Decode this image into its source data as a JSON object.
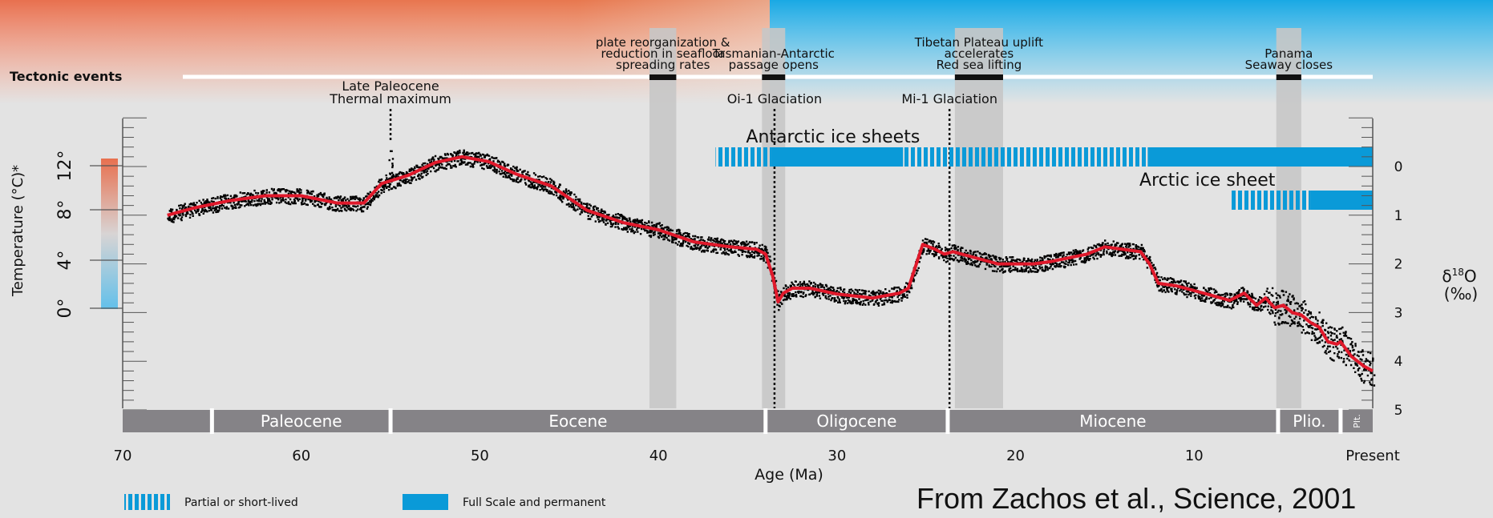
{
  "caption": "From Zachos et al., Science, 2001",
  "chart_data": {
    "type": "line",
    "xlabel": "Age (Ma)",
    "x_ticks": [
      "70",
      "60",
      "50",
      "40",
      "30",
      "20",
      "10",
      "Present"
    ],
    "xlim": [
      70,
      0
    ],
    "y_right_label_prefix": "δ",
    "y_right_label_sup": "18",
    "y_right_label_o": "O",
    "y_right_label_unit": "(‰)",
    "y_right_ticks": [
      "0",
      "1",
      "2",
      "3",
      "4",
      "5"
    ],
    "y_right_range": [
      -1,
      5
    ],
    "y_left_label": "Temperature (°C)*",
    "y_left_ticks": [
      "12",
      "8",
      "4",
      "0"
    ],
    "colors": {
      "curve": "#e0192b",
      "points": "#000000",
      "ice": "#0a9ad8",
      "epoch_bar": "#858387",
      "shade": "#c6c6c6",
      "warm": "#e8704f",
      "cold": "#1aa9e4"
    },
    "series": [
      {
        "x": [
          67.5,
          66,
          64,
          62,
          60,
          58,
          56.5,
          55.5,
          54,
          52.5,
          51,
          49.5,
          48,
          46,
          44,
          42,
          40,
          38,
          36,
          34.5,
          34,
          33.6,
          33.3,
          33,
          32.5,
          31.5,
          30,
          28,
          26.5,
          26,
          25.2,
          24.5,
          24,
          23.5,
          22.5,
          21,
          19,
          18,
          16,
          15,
          14,
          13,
          12.5,
          12,
          11,
          10,
          9,
          8.5,
          8,
          7.2,
          6.5,
          6,
          5.5,
          5,
          4.5,
          4,
          3.5,
          3,
          2.5,
          2,
          1.8,
          1.2,
          0.5,
          0
        ],
        "y": [
          1.0,
          0.85,
          0.7,
          0.6,
          0.6,
          0.75,
          0.75,
          0.35,
          0.18,
          -0.08,
          -0.2,
          -0.1,
          0.15,
          0.4,
          0.9,
          1.15,
          1.3,
          1.55,
          1.65,
          1.7,
          1.8,
          2.25,
          2.78,
          2.6,
          2.5,
          2.5,
          2.62,
          2.7,
          2.6,
          2.5,
          1.6,
          1.7,
          1.8,
          1.75,
          1.85,
          2.0,
          2.0,
          1.95,
          1.8,
          1.65,
          1.7,
          1.75,
          2.0,
          2.4,
          2.45,
          2.55,
          2.65,
          2.7,
          2.75,
          2.6,
          2.85,
          2.7,
          2.9,
          2.85,
          3.0,
          3.05,
          3.2,
          3.3,
          3.6,
          3.65,
          3.6,
          3.9,
          4.1,
          4.2
        ]
      }
    ],
    "epochs": [
      {
        "name": "Paleocene",
        "start": 70,
        "end": 65
      },
      {
        "name": "Paleocene",
        "start": 65,
        "end": 55
      },
      {
        "name": "Eocene",
        "start": 55,
        "end": 34
      },
      {
        "name": "Oligocene",
        "start": 34,
        "end": 23.8
      },
      {
        "name": "Miocene",
        "start": 23.8,
        "end": 5.3
      },
      {
        "name": "Plio.",
        "start": 5.3,
        "end": 1.8
      },
      {
        "name": "Plt.",
        "start": 1.8,
        "end": 0
      }
    ],
    "tectonic_label": "Tectonic events",
    "tectonic_events": [
      {
        "lines": [
          "plate reorganization &",
          "reduction in seafloor",
          "spreading rates"
        ],
        "start": 40.5,
        "end": 39
      },
      {
        "lines": [
          "Tasmanian-Antarctic",
          "passage opens"
        ],
        "start": 34.2,
        "end": 32.9
      },
      {
        "lines": [
          "Tibetan Plateau uplift",
          "accelerates",
          "Red sea lifting"
        ],
        "start": 23.4,
        "end": 20.7
      },
      {
        "lines": [
          "Panama",
          "Seaway closes"
        ],
        "start": 5.4,
        "end": 4
      }
    ],
    "annotations": [
      {
        "lines": [
          "Late Paleocene",
          "Thermal maximum"
        ],
        "x": 55
      },
      {
        "lines": [
          "Oi-1 Glaciation"
        ],
        "x": 33.5
      },
      {
        "lines": [
          "Mi-1 Glaciation"
        ],
        "x": 23.7
      }
    ],
    "ice_sheets": [
      {
        "name": "Antarctic ice sheets",
        "segments": [
          {
            "start": 36.8,
            "end": 33.7,
            "kind": "partial"
          },
          {
            "start": 33.7,
            "end": 26.3,
            "kind": "full"
          },
          {
            "start": 26.3,
            "end": 12.6,
            "kind": "partial"
          },
          {
            "start": 12.6,
            "end": 0,
            "kind": "full"
          }
        ]
      },
      {
        "name": "Arctic ice sheet",
        "segments": [
          {
            "start": 7.9,
            "end": 3.5,
            "kind": "partial"
          },
          {
            "start": 3.5,
            "end": 0,
            "kind": "full"
          }
        ]
      }
    ],
    "legend": [
      {
        "label": "Partial or short-lived",
        "kind": "partial"
      },
      {
        "label": "Full Scale and permanent",
        "kind": "full"
      }
    ]
  }
}
